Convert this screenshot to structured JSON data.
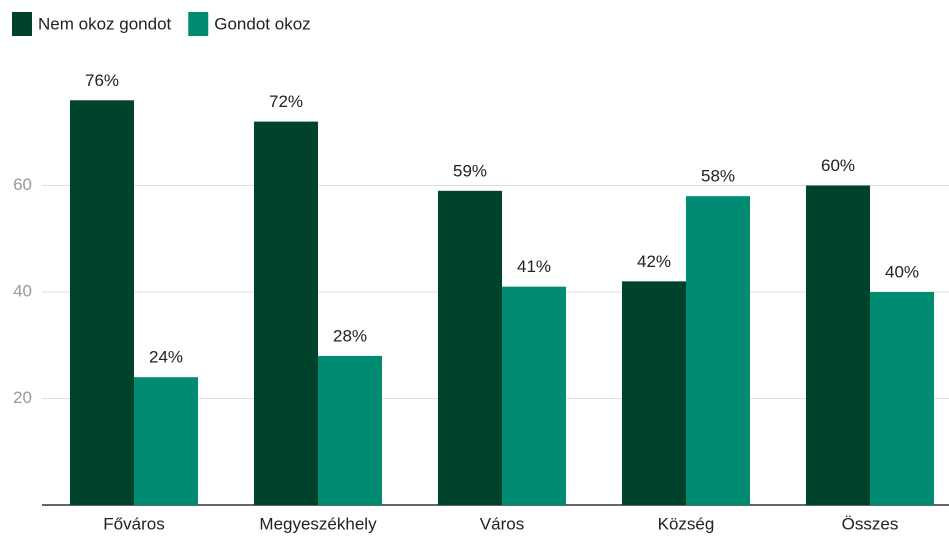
{
  "chart_data": {
    "type": "bar",
    "categories": [
      "Főváros",
      "Megyeszékhely",
      "Város",
      "Község",
      "Összes"
    ],
    "series": [
      {
        "name": "Nem okoz gondot",
        "color": "#00432d",
        "values": [
          76,
          72,
          59,
          42,
          60
        ],
        "value_labels": [
          "76%",
          "72%",
          "59%",
          "42%",
          "60%"
        ]
      },
      {
        "name": "Gondot okoz",
        "color": "#008c72",
        "values": [
          24,
          28,
          41,
          58,
          40
        ],
        "value_labels": [
          "24%",
          "28%",
          "41%",
          "58%",
          "40%"
        ]
      }
    ],
    "ylim": [
      0,
      80
    ],
    "yticks": [
      20,
      40,
      60
    ],
    "grid": true,
    "legend": "top-left"
  }
}
